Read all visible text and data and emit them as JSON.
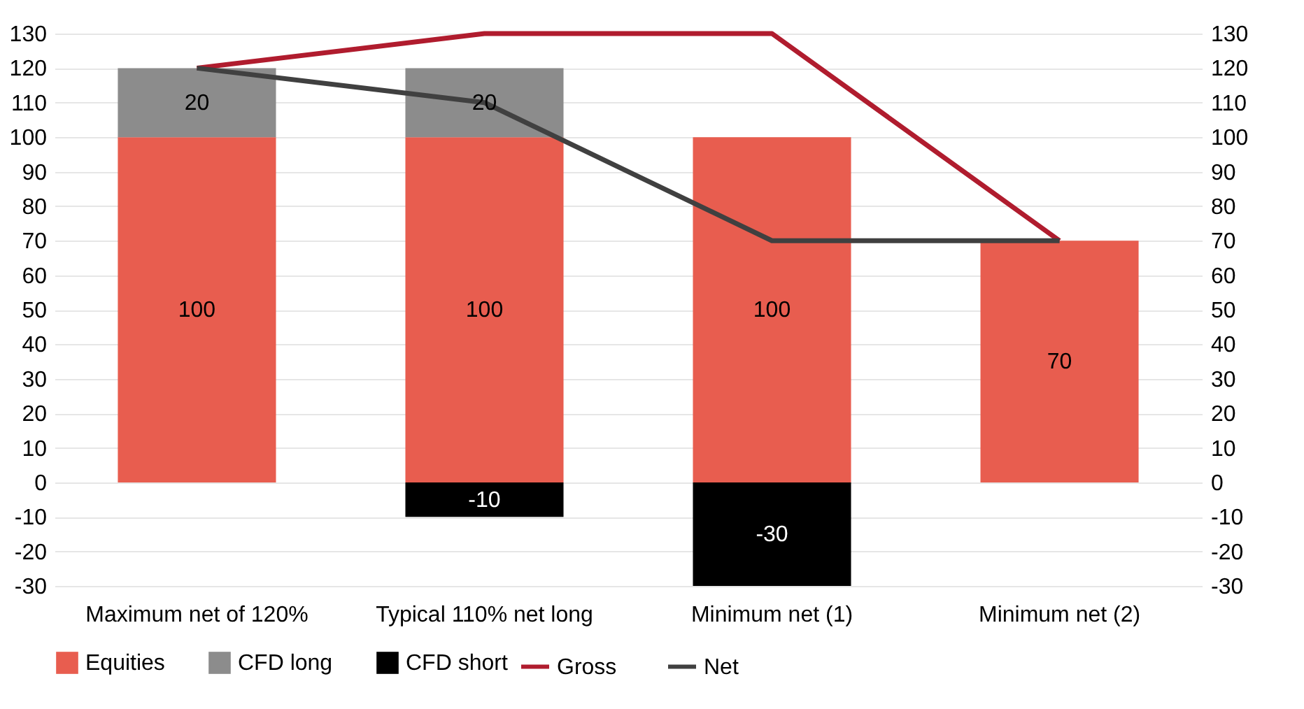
{
  "chart_data": {
    "type": "bar",
    "stacked": true,
    "categories": [
      "Maximum net of 120%",
      "Typical 110% net long",
      "Minimum net (1)",
      "Minimum net (2)"
    ],
    "series": [
      {
        "name": "Equities",
        "color": "#e85d4f",
        "values": [
          100,
          100,
          100,
          70
        ],
        "value_labels": [
          "100",
          "100",
          "100",
          "70"
        ]
      },
      {
        "name": "CFD long",
        "color": "#8c8c8c",
        "values": [
          20,
          20,
          null,
          null
        ],
        "value_labels": [
          "20",
          "20",
          null,
          null
        ]
      },
      {
        "name": "CFD short",
        "color": "#000000",
        "values": [
          null,
          -10,
          -30,
          null
        ],
        "value_labels": [
          null,
          "-10",
          "-30",
          null
        ]
      },
      {
        "name": "Gross",
        "type": "line",
        "color": "#b01c2e",
        "values": [
          120,
          130,
          130,
          70
        ]
      },
      {
        "name": "Net",
        "type": "line",
        "color": "#404040",
        "values": [
          120,
          110,
          70,
          70
        ]
      }
    ],
    "ylim": [
      -30,
      130
    ],
    "yticks": [
      -30,
      -20,
      -10,
      0,
      10,
      20,
      30,
      40,
      50,
      60,
      70,
      80,
      90,
      100,
      110,
      120,
      130
    ],
    "y2lim": [
      -30,
      130
    ],
    "y2ticks": [
      -30,
      -20,
      -10,
      0,
      10,
      20,
      30,
      40,
      50,
      60,
      70,
      80,
      90,
      100,
      110,
      120,
      130
    ],
    "grid": "y",
    "legend": "bottom"
  }
}
